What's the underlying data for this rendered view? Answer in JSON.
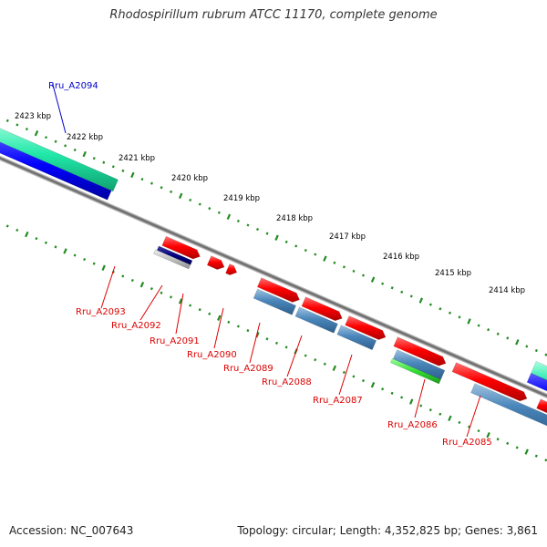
{
  "title": "Rhodospirillum rubrum ATCC 11170, complete genome",
  "footer": {
    "accession": "Accession: NC_007643",
    "topology": "Topology: circular; Length: 4,352,825 bp; Genes: 3,861"
  },
  "colors": {
    "forward_gene": "#ff0000",
    "reverse_gene": "#4682b4",
    "highlight_forward": "#00c88c",
    "highlight_reverse": "#0000ff",
    "tick": "#228b22",
    "backbone": "#808080",
    "label_red": "#dd0000",
    "label_blue": "#0000cc"
  },
  "scale_labels": [
    "2423 kbp",
    "2422 kbp",
    "2421 kbp",
    "2420 kbp",
    "2419 kbp",
    "2418 kbp",
    "2417 kbp",
    "2416 kbp",
    "2415 kbp",
    "2414 kbp"
  ],
  "gene_labels": [
    {
      "name": "Rru_A2094",
      "color": "blue"
    },
    {
      "name": "Rru_A2093",
      "color": "red"
    },
    {
      "name": "Rru_A2092",
      "color": "red"
    },
    {
      "name": "Rru_A2091",
      "color": "red"
    },
    {
      "name": "Rru_A2090",
      "color": "red"
    },
    {
      "name": "Rru_A2089",
      "color": "red"
    },
    {
      "name": "Rru_A2088",
      "color": "red"
    },
    {
      "name": "Rru_A2087",
      "color": "red"
    },
    {
      "name": "Rru_A2086",
      "color": "red"
    },
    {
      "name": "Rru_A2085",
      "color": "red"
    }
  ]
}
